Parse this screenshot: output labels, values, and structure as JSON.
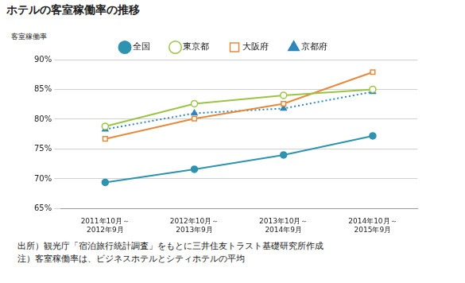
{
  "chart_data": {
    "type": "line",
    "title": "ホテルの客室稼働率の推移",
    "y_label": "客室稼働率",
    "annotations": [
      "出所）観光庁「宿泊旅行統計調査」をもとに三井住友トラスト基礎研究所作成",
      "注）客室稼働率は、ビジネスホテルとシティホテルの平均"
    ],
    "categories": [
      [
        "2011年10月～",
        "2012年9月"
      ],
      [
        "2012年10月～",
        "2013年9月"
      ],
      [
        "2013年10月～",
        "2014年9月"
      ],
      [
        "2014年10月～",
        "2015年9月"
      ]
    ],
    "series": [
      {
        "name": "全国",
        "color": "#2e93b0",
        "marker": "circle",
        "line_style": "solid",
        "values": [
          69.4,
          71.6,
          74.0,
          77.2
        ]
      },
      {
        "name": "東京都",
        "color": "#9cc444",
        "marker": "open_circle",
        "line_style": "solid",
        "values": [
          78.8,
          82.6,
          84.0,
          85.0
        ]
      },
      {
        "name": "大阪府",
        "color": "#e58a3c",
        "marker": "open_square",
        "line_style": "solid",
        "values": [
          76.7,
          80.1,
          82.6,
          87.9
        ]
      },
      {
        "name": "京都府",
        "color": "#2f86b8",
        "marker": "triangle",
        "line_style": "dotted",
        "values": [
          78.3,
          81.0,
          81.8,
          84.6
        ]
      }
    ],
    "ylim": [
      65,
      90
    ],
    "yticks": [
      {
        "value": 65,
        "label": "65%"
      },
      {
        "value": 70,
        "label": "70%"
      },
      {
        "value": 75,
        "label": "75%"
      },
      {
        "value": 80,
        "label": "80%"
      },
      {
        "value": 85,
        "label": "85%"
      },
      {
        "value": 90,
        "label": "90%"
      }
    ],
    "grid": true,
    "legend": "top"
  }
}
